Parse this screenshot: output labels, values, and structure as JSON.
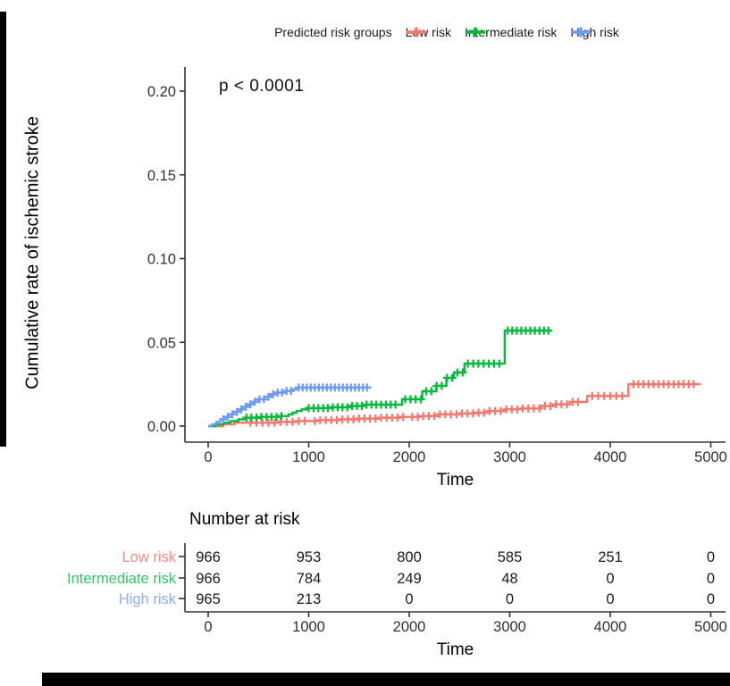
{
  "figure": {
    "background": "#ffffff",
    "left_bar_color": "#000000",
    "bottom_bar_color": "#000000"
  },
  "chart_data": {
    "type": "line",
    "subtype": "cumulative-incidence-step-curves-with-censor-marks",
    "legend_title": "Predicted risk groups",
    "annotation": "p < 0.0001",
    "xlabel": "Time",
    "ylabel": "Cumulative rate of ischemic stroke",
    "xlim": [
      0,
      5000
    ],
    "ylim": [
      0,
      0.2
    ],
    "xticks": [
      0,
      1000,
      2000,
      3000,
      4000,
      5000
    ],
    "yticks": [
      0,
      0.05,
      0.1,
      0.15,
      0.2
    ],
    "grid": false,
    "legend_position": "top",
    "series": [
      {
        "name": "Low risk",
        "color": "#F8766D",
        "points": [
          [
            0,
            0
          ],
          [
            150,
            0.001
          ],
          [
            260,
            0.002
          ],
          [
            700,
            0.0025
          ],
          [
            900,
            0.003
          ],
          [
            1100,
            0.0035
          ],
          [
            1300,
            0.004
          ],
          [
            1500,
            0.0045
          ],
          [
            1700,
            0.005
          ],
          [
            1900,
            0.0055
          ],
          [
            2100,
            0.006
          ],
          [
            2300,
            0.007
          ],
          [
            2500,
            0.0075
          ],
          [
            2650,
            0.008
          ],
          [
            2800,
            0.009
          ],
          [
            2950,
            0.01
          ],
          [
            3100,
            0.0105
          ],
          [
            3300,
            0.012
          ],
          [
            3450,
            0.013
          ],
          [
            3600,
            0.0144
          ],
          [
            3770,
            0.018
          ],
          [
            4180,
            0.025
          ],
          [
            4900,
            0.025
          ]
        ],
        "censor_runs": [
          [
            420,
            980,
            60
          ],
          [
            1060,
            1980,
            55
          ],
          [
            2030,
            3700,
            55
          ],
          [
            3820,
            4140,
            60
          ],
          [
            4230,
            4860,
            50
          ]
        ]
      },
      {
        "name": "Intermediate risk",
        "color": "#00BA38",
        "points": [
          [
            0,
            0
          ],
          [
            80,
            0.001
          ],
          [
            150,
            0.002
          ],
          [
            220,
            0.003
          ],
          [
            300,
            0.004
          ],
          [
            360,
            0.005
          ],
          [
            520,
            0.0055
          ],
          [
            700,
            0.006
          ],
          [
            800,
            0.007
          ],
          [
            840,
            0.008
          ],
          [
            880,
            0.009
          ],
          [
            930,
            0.01
          ],
          [
            980,
            0.0107
          ],
          [
            1200,
            0.0112
          ],
          [
            1400,
            0.012
          ],
          [
            1550,
            0.0128
          ],
          [
            1930,
            0.016
          ],
          [
            2130,
            0.0208
          ],
          [
            2270,
            0.024
          ],
          [
            2370,
            0.0288
          ],
          [
            2445,
            0.032
          ],
          [
            2550,
            0.0373
          ],
          [
            2950,
            0.057
          ],
          [
            3400,
            0.057
          ]
        ],
        "censor_runs": [
          [
            380,
            760,
            50
          ],
          [
            1000,
            1900,
            48
          ],
          [
            1960,
            2900,
            52
          ],
          [
            2980,
            3390,
            45
          ]
        ]
      },
      {
        "name": "High risk",
        "color": "#6C9BF5",
        "points": [
          [
            0,
            0
          ],
          [
            40,
            0.001
          ],
          [
            80,
            0.0025
          ],
          [
            120,
            0.004
          ],
          [
            160,
            0.0055
          ],
          [
            200,
            0.007
          ],
          [
            250,
            0.0085
          ],
          [
            300,
            0.01
          ],
          [
            350,
            0.0115
          ],
          [
            400,
            0.013
          ],
          [
            450,
            0.0145
          ],
          [
            500,
            0.016
          ],
          [
            560,
            0.0175
          ],
          [
            620,
            0.019
          ],
          [
            690,
            0.02
          ],
          [
            760,
            0.021
          ],
          [
            830,
            0.022
          ],
          [
            880,
            0.023
          ],
          [
            1618,
            0.023
          ]
        ],
        "censor_runs": [
          [
            150,
            860,
            45
          ],
          [
            900,
            1600,
            40
          ]
        ]
      }
    ],
    "risk_table": {
      "title": "Number at risk",
      "xlabel": "Time",
      "time_points": [
        0,
        1000,
        2000,
        3000,
        4000,
        5000
      ],
      "rows": [
        {
          "label": "Low risk",
          "color": "#F98B84",
          "values": [
            966,
            953,
            800,
            585,
            251,
            0
          ]
        },
        {
          "label": "Intermediate risk",
          "color": "#2FC863",
          "values": [
            966,
            784,
            249,
            48,
            0,
            0
          ]
        },
        {
          "label": "High risk",
          "color": "#93A8F6",
          "values": [
            965,
            213,
            0,
            0,
            0,
            0
          ]
        }
      ]
    }
  }
}
